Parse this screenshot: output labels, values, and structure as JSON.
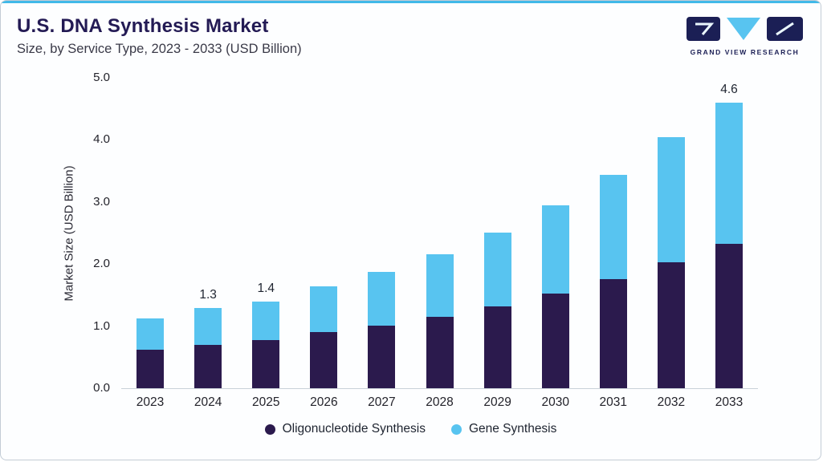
{
  "theme": {
    "accent_blue": "#41B9E8",
    "dark_purple": "#2B1A4D",
    "sky_blue": "#58C4F0",
    "title_color": "#231A54",
    "logo_navy": "#1B1F55",
    "axis_line": "#C9D1D9",
    "card_border": "#C3CCD5",
    "background": "#FDFEFF"
  },
  "header": {
    "title": "U.S. DNA Synthesis Market",
    "subtitle": "Size, by Service Type, 2023 - 2033 (USD Billion)",
    "logo_text": "GRAND VIEW RESEARCH"
  },
  "chart_data": {
    "type": "bar",
    "stacked": true,
    "title": "U.S. DNA Synthesis Market",
    "subtitle": "Size, by Service Type, 2023 - 2033 (USD Billion)",
    "ylabel": "Market Size (USD Billion)",
    "xlabel": "",
    "ylim": [
      0,
      5
    ],
    "yticks": [
      "0.0",
      "1.0",
      "2.0",
      "3.0",
      "4.0",
      "5.0"
    ],
    "grid": false,
    "legend_position": "bottom",
    "categories": [
      "2023",
      "2024",
      "2025",
      "2026",
      "2027",
      "2028",
      "2029",
      "2030",
      "2031",
      "2032",
      "2033"
    ],
    "series": [
      {
        "name": "Oligonucleotide Synthesis",
        "color": "#2B1A4D",
        "values": [
          0.62,
          0.7,
          0.78,
          0.9,
          1.01,
          1.15,
          1.32,
          1.52,
          1.76,
          2.03,
          2.33
        ]
      },
      {
        "name": "Gene Synthesis",
        "color": "#58C4F0",
        "values": [
          0.5,
          0.6,
          0.62,
          0.73,
          0.86,
          1.01,
          1.19,
          1.42,
          1.68,
          2.01,
          2.27
        ]
      }
    ],
    "bar_labels": {
      "2024": "1.3",
      "2025": "1.4",
      "2033": "4.6"
    }
  }
}
